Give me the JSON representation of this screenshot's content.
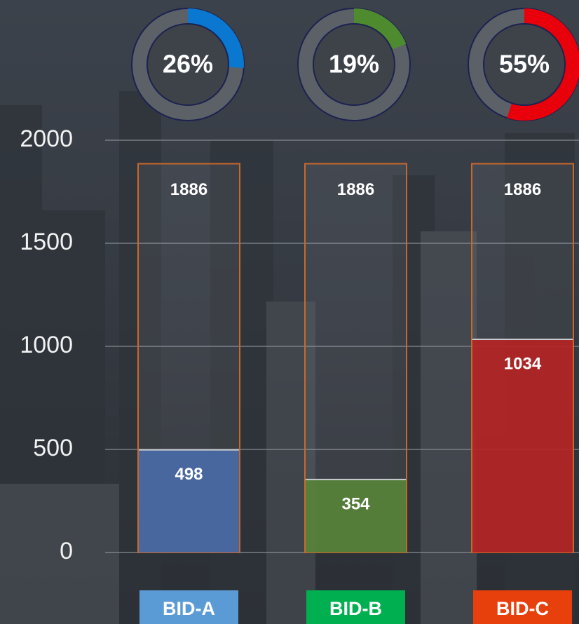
{
  "chart_data": {
    "type": "bar",
    "categories": [
      "BID-A",
      "BID-B",
      "BID-C"
    ],
    "values": [
      498,
      354,
      1034
    ],
    "totals": [
      1886,
      1886,
      1886
    ],
    "colors": [
      "#4a6aa6",
      "#58823a",
      "#b42424"
    ],
    "category_colors": [
      "#5b9bd5",
      "#00b050",
      "#e8400c"
    ],
    "outline_color": "#c8682c",
    "percentages": [
      26,
      19,
      55
    ],
    "percentage_labels": [
      "26%",
      "19%",
      "55%"
    ],
    "ring_colors": [
      "#0a78d0",
      "#4e8a2e",
      "#e8000a"
    ],
    "ylim": [
      0,
      2000
    ],
    "yticks": [
      0,
      500,
      1000,
      1500,
      2000
    ],
    "grid": true
  }
}
